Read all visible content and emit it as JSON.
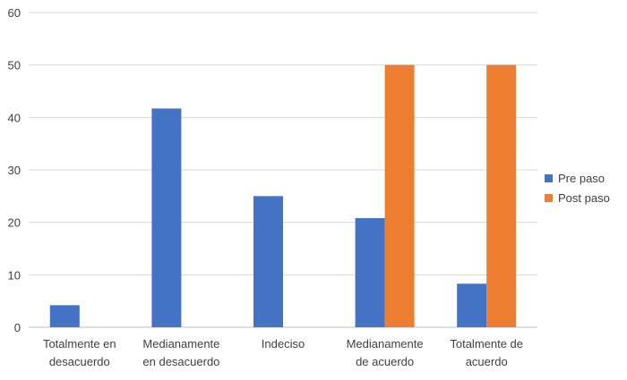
{
  "chart_data": {
    "type": "bar",
    "title": "",
    "xlabel": "",
    "ylabel": "",
    "categories": [
      [
        "Totalmente en",
        "desacuerdo"
      ],
      [
        "Medianamente",
        "en desacuerdo"
      ],
      [
        "Indeciso"
      ],
      [
        "Medianamente",
        "de acuerdo"
      ],
      [
        "Totalmente de",
        "acuerdo"
      ]
    ],
    "series": [
      {
        "name": "Pre paso",
        "color": "#4472C4",
        "values": [
          4.2,
          41.7,
          25.0,
          20.8,
          8.3
        ]
      },
      {
        "name": "Post paso",
        "color": "#ED7D31",
        "values": [
          0,
          0,
          0,
          50,
          50
        ]
      }
    ],
    "ylim": [
      0,
      60
    ],
    "yticks": [
      0,
      10,
      20,
      30,
      40,
      50,
      60
    ],
    "grid": true,
    "legend_position": "right"
  }
}
